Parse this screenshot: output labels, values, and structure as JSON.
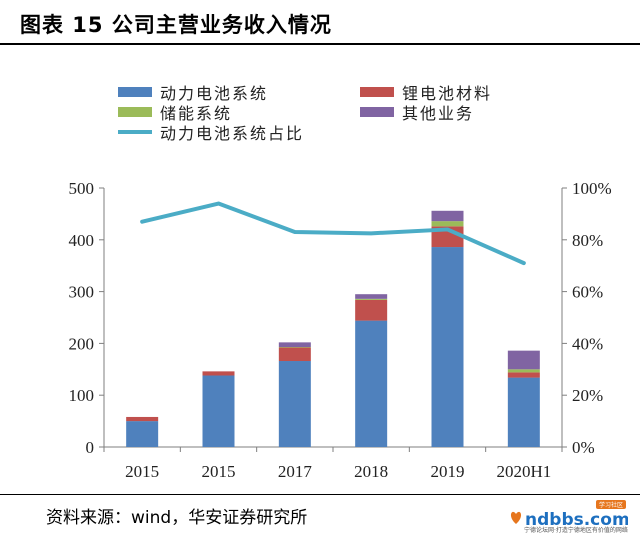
{
  "figure": {
    "title": "图表 15 公司主营业务收入情况",
    "source": "资料来源：wind，华安证券研究所"
  },
  "watermark": {
    "brand": "ndbbs.com",
    "badge": "学习社区",
    "tagline": "宁德论坛网·打造宁德地区有价值的网络论坛"
  },
  "chart_data": {
    "type": "bar",
    "stacked": true,
    "categories": [
      "2015",
      "2015",
      "2017",
      "2018",
      "2019",
      "2020H1"
    ],
    "series": [
      {
        "name": "动力电池系统",
        "type": "bar",
        "axis": "left",
        "color": "#4F81BD",
        "values": [
          50,
          138,
          166,
          244,
          386,
          134
        ]
      },
      {
        "name": "锂电池材料",
        "type": "bar",
        "axis": "left",
        "color": "#C0504D",
        "values": [
          8,
          8,
          26,
          40,
          40,
          10
        ]
      },
      {
        "name": "储能系统",
        "type": "bar",
        "axis": "left",
        "color": "#9BBB59",
        "values": [
          0,
          0,
          1,
          2,
          10,
          6
        ]
      },
      {
        "name": "其他业务",
        "type": "bar",
        "axis": "left",
        "color": "#8064A2",
        "values": [
          0,
          0,
          9,
          9,
          20,
          36
        ]
      },
      {
        "name": "动力电池系统占比",
        "type": "line",
        "axis": "right",
        "color": "#4BACC6",
        "values": [
          0.87,
          0.94,
          0.83,
          0.825,
          0.84,
          0.71
        ]
      }
    ],
    "left_axis": {
      "min": 0,
      "max": 500,
      "ticks": [
        "0",
        "100",
        "200",
        "300",
        "400",
        "500"
      ]
    },
    "right_axis": {
      "min": 0,
      "max": 1,
      "ticks": [
        "0%",
        "20%",
        "40%",
        "60%",
        "80%",
        "100%"
      ]
    },
    "legend_position": "top",
    "grid": false
  }
}
